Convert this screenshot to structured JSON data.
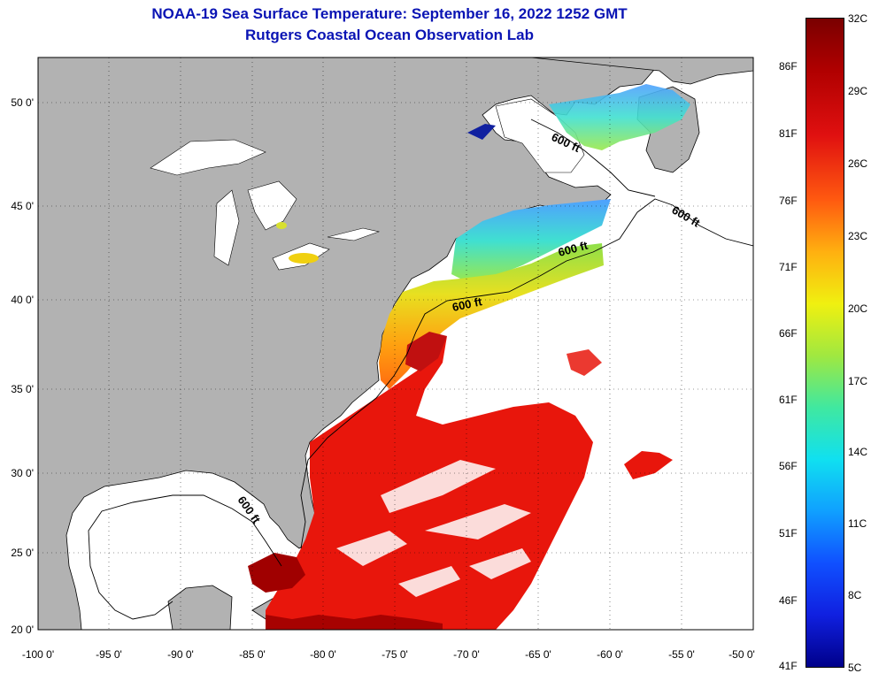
{
  "header": {
    "title": "NOAA-19 Sea Surface Temperature:  September 16, 2022 1252 GMT",
    "subtitle": "Rutgers Coastal Ocean Observation Lab"
  },
  "map": {
    "lon_range": [
      -100,
      -50
    ],
    "lat_range": [
      20,
      52
    ],
    "lon_ticks": [
      "-100 0'",
      "-95 0'",
      "-90 0'",
      "-85 0'",
      "-80 0'",
      "-75 0'",
      "-70 0'",
      "-65 0'",
      "-60 0'",
      "-55 0'",
      "-50 0'"
    ],
    "lat_ticks": [
      "20 0'",
      "25 0'",
      "30 0'",
      "35 0'",
      "40 0'",
      "45 0'",
      "50 0'"
    ],
    "contour_labels": [
      "600 ft",
      "600 ft",
      "600 ft",
      "600 ft",
      "600 ft"
    ],
    "colors": {
      "land": "#b2b2b2",
      "cloud": "#ffffff",
      "warm": "#e8160c",
      "hot": "#a00000"
    }
  },
  "colorbar": {
    "celsius": [
      "32C",
      "29C",
      "26C",
      "23C",
      "20C",
      "17C",
      "14C",
      "11C",
      "8C",
      "5C"
    ],
    "fahrenheit": [
      "86F",
      "81F",
      "76F",
      "71F",
      "66F",
      "61F",
      "56F",
      "51F",
      "46F",
      "41F"
    ]
  }
}
